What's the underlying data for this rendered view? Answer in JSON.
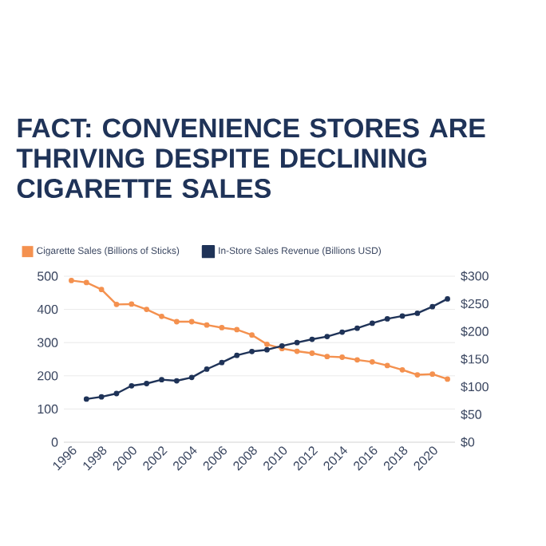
{
  "chart_data": {
    "type": "line",
    "title": "FACT: CONVENIENCE STORES ARE THRIVING DESPITE DECLINING CIGARETTE SALES",
    "xlim": [
      1995.5,
      2021.5
    ],
    "xticks": [
      1996,
      1998,
      2000,
      2002,
      2004,
      2006,
      2008,
      2010,
      2012,
      2014,
      2016,
      2018,
      2020
    ],
    "ylim": [
      0,
      500
    ],
    "yticks": [
      0,
      100,
      200,
      300,
      400,
      500
    ],
    "y2lim": [
      0,
      300
    ],
    "y2ticks": [
      {
        "value": 0,
        "label": "$0"
      },
      {
        "value": 50,
        "label": "$50"
      },
      {
        "value": 100,
        "label": "$100"
      },
      {
        "value": 150,
        "label": "$150"
      },
      {
        "value": 200,
        "label": "$200"
      },
      {
        "value": 250,
        "label": "$250"
      },
      {
        "value": 300,
        "label": "$300"
      }
    ],
    "grid": "y",
    "legend": "top left",
    "marker": "circle",
    "series": [
      {
        "name": "Cigarette Sales (Billions of Sticks)",
        "color": "#f4914f",
        "x": [
          1996,
          1997,
          1998,
          1999,
          2000,
          2001,
          2002,
          2003,
          2004,
          2005,
          2006,
          2007,
          2008,
          2009,
          2010,
          2011,
          2012,
          2013,
          2014,
          2015,
          2016,
          2017,
          2018,
          2019,
          2020,
          2021
        ],
        "values": [
          487,
          481,
          460,
          415,
          416,
          400,
          379,
          363,
          363,
          353,
          345,
          339,
          323,
          295,
          282,
          274,
          268,
          258,
          256,
          248,
          242,
          231,
          218,
          203,
          205,
          190
        ]
      },
      {
        "name": "In-Store Sales Revenue (Billions USD)",
        "color": "#1f3358",
        "axis": "y2",
        "x": [
          1997,
          1998,
          1999,
          2000,
          2001,
          2002,
          2003,
          2004,
          2005,
          2006,
          2007,
          2008,
          2009,
          2010,
          2011,
          2012,
          2013,
          2014,
          2015,
          2016,
          2017,
          2018,
          2019,
          2020,
          2021
        ],
        "values": [
          78,
          82,
          88,
          102,
          106,
          113,
          111,
          117,
          132,
          144,
          157,
          164,
          167,
          174,
          180,
          186,
          191,
          199,
          206,
          215,
          223,
          228,
          233,
          245,
          259
        ]
      }
    ]
  }
}
